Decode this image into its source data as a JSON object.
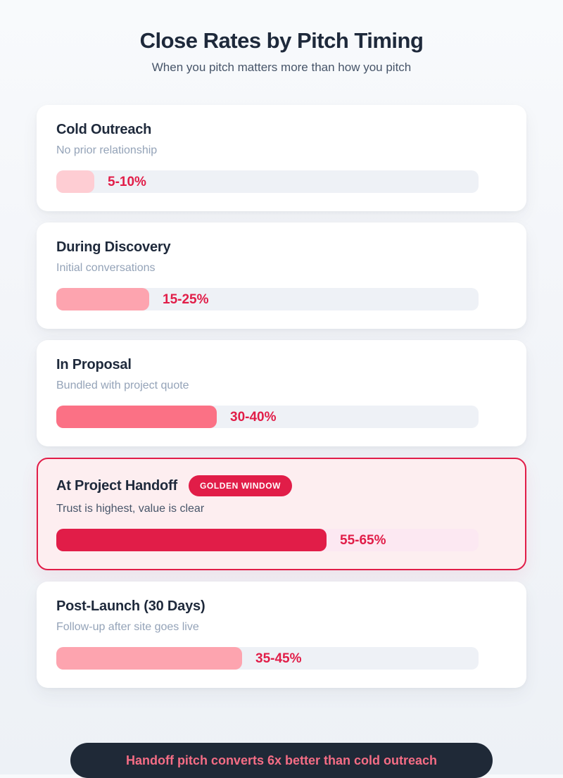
{
  "header": {
    "title": "Close Rates by Pitch Timing",
    "subtitle": "When you pitch matters more than how you pitch"
  },
  "colors": {
    "accent": "#e11d48",
    "page_background_top": "#f8fafc",
    "page_background_bottom": "#edf1f6",
    "card_background": "#ffffff",
    "highlight_card_background": "#fdeef0",
    "highlight_card_border": "#e11d48",
    "bar_track": "#eef1f6",
    "highlight_bar_track": "#fce8f2",
    "heading_text": "#1e293b",
    "muted_text": "#94a3b8",
    "footer_background": "#1f2937",
    "footer_text": "#f56d85",
    "badge_background": "#e11d48",
    "badge_text": "#ffffff"
  },
  "chart_data": {
    "type": "bar",
    "orientation": "horizontal",
    "title": "Close Rates by Pitch Timing",
    "subtitle": "When you pitch matters more than how you pitch",
    "categories": [
      "Cold Outreach",
      "During Discovery",
      "In Proposal",
      "At Project Handoff",
      "Post-Launch (30 Days)"
    ],
    "category_descriptions": [
      "No prior relationship",
      "Initial conversations",
      "Bundled with project quote",
      "Trust is highest, value is clear",
      "Follow-up after site goes live"
    ],
    "value_labels": [
      "5-10%",
      "15-25%",
      "30-40%",
      "55-65%",
      "35-45%"
    ],
    "value_ranges": [
      [
        5,
        10
      ],
      [
        15,
        25
      ],
      [
        30,
        40
      ],
      [
        55,
        65
      ],
      [
        35,
        45
      ]
    ],
    "bar_fill_percents": [
      9,
      22,
      38,
      64,
      44
    ],
    "bar_colors": [
      "#fecdd3",
      "#fda4af",
      "#fb7185",
      "#e11d48",
      "#fda4af"
    ],
    "highlighted_index": 3,
    "highlight_badge": "GOLDEN WINDOW",
    "xlim": [
      0,
      100
    ],
    "grid": false,
    "legend": false,
    "annotation": "Handoff pitch converts 6x better than cold outreach"
  },
  "cards": [
    {
      "title": "Cold Outreach",
      "subtitle": "No prior relationship",
      "label": "5-10%",
      "percent": 9,
      "fill": "#fecdd3",
      "highlight": false
    },
    {
      "title": "During Discovery",
      "subtitle": "Initial conversations",
      "label": "15-25%",
      "percent": 22,
      "fill": "#fda4af",
      "highlight": false
    },
    {
      "title": "In Proposal",
      "subtitle": "Bundled with project quote",
      "label": "30-40%",
      "percent": 38,
      "fill": "#fb7185",
      "highlight": false
    },
    {
      "title": "At Project Handoff",
      "subtitle": "Trust is highest, value is clear",
      "label": "55-65%",
      "percent": 64,
      "fill": "#e11d48",
      "highlight": true,
      "badge": "GOLDEN WINDOW"
    },
    {
      "title": "Post-Launch (30 Days)",
      "subtitle": "Follow-up after site goes live",
      "label": "35-45%",
      "percent": 44,
      "fill": "#fda4af",
      "highlight": false
    }
  ],
  "footer": {
    "text": "Handoff pitch converts 6x better than cold outreach"
  }
}
